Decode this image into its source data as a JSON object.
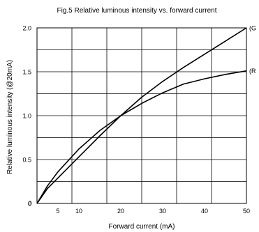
{
  "chart_data": {
    "type": "line",
    "title": "Fig.5 Relative luminous intensity vs. forward current",
    "xlabel": "Forward current (mA)",
    "ylabel": "Relative luminous intensity (@20mA)",
    "xlim": [
      0,
      50
    ],
    "ylim": [
      0,
      2.0
    ],
    "x_tick_labels": [
      "0",
      "5",
      "10",
      "20",
      "30",
      "40",
      "50"
    ],
    "y_tick_labels": [
      "0",
      "0.5",
      "1.0",
      "1.5",
      "2.0"
    ],
    "grid": true,
    "legend": "none",
    "series": [
      {
        "name": "(G",
        "x": [
          0,
          2.5,
          5,
          10,
          15,
          20,
          25,
          30,
          35,
          40,
          45,
          50
        ],
        "y": [
          0,
          0.17,
          0.29,
          0.53,
          0.77,
          1.0,
          1.21,
          1.39,
          1.55,
          1.7,
          1.85,
          2.0
        ]
      },
      {
        "name": "(R",
        "x": [
          0,
          2.5,
          5,
          10,
          15,
          20,
          25,
          30,
          35,
          40,
          45,
          50
        ],
        "y": [
          0,
          0.2,
          0.36,
          0.62,
          0.83,
          1.0,
          1.14,
          1.26,
          1.36,
          1.42,
          1.47,
          1.51
        ]
      }
    ]
  }
}
